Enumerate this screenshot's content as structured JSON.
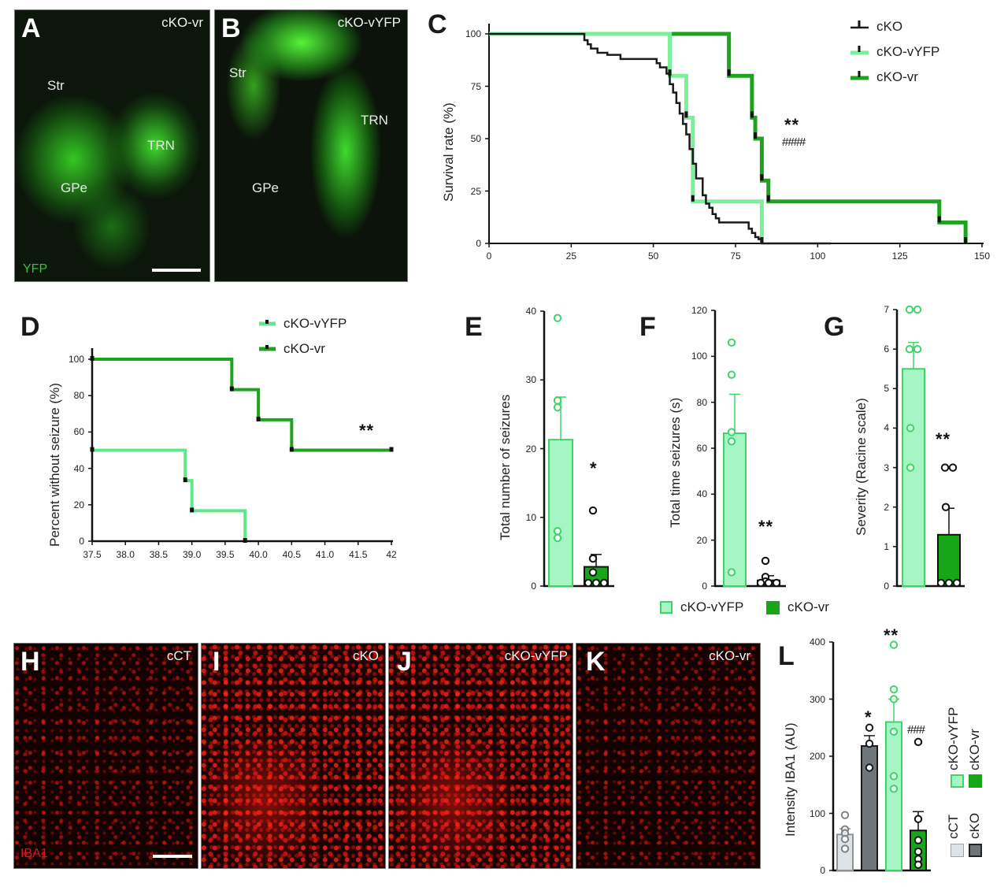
{
  "figure": {
    "panels": {
      "A": {
        "letter": "A",
        "genotype": "cKO-vr",
        "regions": [
          "Str",
          "TRN",
          "GPe"
        ],
        "stain": "YFP"
      },
      "B": {
        "letter": "B",
        "genotype": "cKO-vYFP",
        "regions": [
          "Str",
          "TRN",
          "GPe"
        ]
      },
      "C": {
        "letter": "C"
      },
      "D": {
        "letter": "D"
      },
      "E": {
        "letter": "E"
      },
      "F": {
        "letter": "F"
      },
      "G": {
        "letter": "G"
      },
      "H": {
        "letter": "H",
        "genotype": "cCT",
        "stain": "IBA1"
      },
      "I": {
        "letter": "I",
        "genotype": "cKO"
      },
      "J": {
        "letter": "J",
        "genotype": "cKO-vYFP"
      },
      "K": {
        "letter": "K",
        "genotype": "cKO-vr"
      },
      "L": {
        "letter": "L"
      }
    },
    "shared_legend_EFG": [
      {
        "label": "cKO-vYFP",
        "color": "#a6f5c4",
        "border": "#3fd46a"
      },
      {
        "label": "cKO-vr",
        "color": "#17a617",
        "border": "#17a617"
      }
    ],
    "colors": {
      "cKO": "#1a1a1a",
      "cCT": "#dde3e6",
      "cKO_bar": "#6f7679",
      "cKO_vYFP_line": "#7af09a",
      "cKO_vYFP_fill": "#a6f5c4",
      "cKO_vr": "#1fa21f"
    }
  },
  "chart_data": [
    {
      "panel": "C",
      "type": "line",
      "subtype": "kaplan-meier step",
      "title": "",
      "xlabel": "",
      "ylabel": "Survival rate (%)",
      "xlim": [
        0,
        150
      ],
      "ylim": [
        0,
        100
      ],
      "xticks": [
        "0",
        "25",
        "50",
        "75",
        "100",
        "125",
        "150"
      ],
      "yticks": [
        "0",
        "25",
        "50",
        "75",
        "100"
      ],
      "legend": [
        "cKO",
        "cKO-vYFP",
        "cKO-vr"
      ],
      "annotations": [
        "**",
        "####"
      ],
      "series": [
        {
          "name": "cKO",
          "color": "#1a1a1a",
          "x": [
            0,
            29,
            30,
            31,
            33,
            36,
            40,
            51,
            52,
            54,
            55,
            56,
            57,
            58,
            59,
            60,
            61,
            62,
            63,
            65,
            66,
            67,
            68,
            69,
            70,
            79,
            80,
            81,
            82,
            83,
            104
          ],
          "y": [
            100,
            97,
            95,
            93,
            91,
            90,
            88,
            86,
            84,
            81,
            76,
            72,
            67,
            62,
            57,
            52,
            45,
            38,
            31,
            23,
            19,
            17,
            14,
            12,
            10,
            7,
            5,
            3,
            2,
            0,
            0
          ]
        },
        {
          "name": "cKO-vYFP",
          "color": "#7af09a",
          "x": [
            0,
            55,
            60,
            62,
            83
          ],
          "y": [
            100,
            80,
            60,
            20,
            0
          ]
        },
        {
          "name": "cKO-vr",
          "color": "#1fa21f",
          "x": [
            0,
            73,
            80,
            81,
            83,
            85,
            137,
            145
          ],
          "y": [
            100,
            80,
            60,
            50,
            30,
            20,
            10,
            0
          ]
        }
      ]
    },
    {
      "panel": "D",
      "type": "line",
      "subtype": "kaplan-meier step",
      "title": "",
      "xlabel": "",
      "ylabel": "Percent without seizure (%)",
      "xlim": [
        37.5,
        42
      ],
      "ylim": [
        0,
        100
      ],
      "xticks": [
        "37.5",
        "38.0",
        "38.5",
        "39.0",
        "39.5",
        "40.0",
        "40.5",
        "41.0",
        "41.5",
        "42"
      ],
      "yticks": [
        "0",
        "20",
        "40",
        "60",
        "80",
        "100"
      ],
      "legend": [
        "cKO-vYFP",
        "cKO-vr"
      ],
      "annotations": [
        "**"
      ],
      "series": [
        {
          "name": "cKO-vYFP",
          "color": "#5ee88a",
          "x": [
            37.5,
            38.9,
            39.0,
            39.8
          ],
          "y": [
            50,
            33.3,
            16.7,
            0
          ]
        },
        {
          "name": "cKO-vr",
          "color": "#1fa21f",
          "x": [
            37.5,
            39.6,
            40.0,
            40.5,
            42
          ],
          "y": [
            100,
            83.3,
            66.7,
            50,
            50
          ]
        }
      ]
    },
    {
      "panel": "E",
      "type": "bar",
      "title": "",
      "ylabel": "Total number of seizures",
      "ylim": [
        0,
        40
      ],
      "yticks": [
        "0",
        "10",
        "20",
        "30",
        "40"
      ],
      "categories": [
        "cKO-vYFP",
        "cKO-vr"
      ],
      "values": [
        21.3,
        2.8
      ],
      "errors": [
        6.2,
        1.8
      ],
      "points": [
        [
          39,
          27,
          26,
          8,
          7
        ],
        [
          11,
          4,
          2,
          0,
          0,
          0
        ]
      ],
      "annotations": [
        "*"
      ]
    },
    {
      "panel": "F",
      "type": "bar",
      "title": "",
      "ylabel": "Total time seizures (s)",
      "ylim": [
        0,
        120
      ],
      "yticks": [
        "0",
        "20",
        "40",
        "60",
        "80",
        "100",
        "120"
      ],
      "categories": [
        "cKO-vYFP",
        "cKO-vr"
      ],
      "values": [
        66.5,
        2.5
      ],
      "errors": [
        17,
        2
      ],
      "points": [
        [
          106,
          92,
          67,
          63,
          6
        ],
        [
          11,
          4,
          2,
          0,
          0,
          0
        ]
      ],
      "annotations": [
        "**"
      ]
    },
    {
      "panel": "G",
      "type": "bar",
      "title": "",
      "ylabel": "Severity (Racine scale)",
      "ylim": [
        0,
        7
      ],
      "yticks": [
        "0",
        "1",
        "2",
        "3",
        "4",
        "5",
        "6",
        "7"
      ],
      "categories": [
        "cKO-vYFP",
        "cKO-vr"
      ],
      "values": [
        5.5,
        1.3
      ],
      "errors": [
        0.67,
        0.67
      ],
      "points": [
        [
          7,
          7,
          6,
          6,
          4,
          3
        ],
        [
          3,
          3,
          2,
          0,
          0,
          0
        ]
      ],
      "annotations": [
        "**"
      ]
    },
    {
      "panel": "L",
      "type": "bar",
      "title": "",
      "ylabel": "Intensity IBA1 (AU)",
      "ylim": [
        0,
        400
      ],
      "yticks": [
        "0",
        "100",
        "200",
        "300",
        "400"
      ],
      "categories": [
        "cCT",
        "cKO",
        "cKO-vYFP",
        "cKO-vr"
      ],
      "values": [
        63,
        218,
        260,
        70
      ],
      "errors": [
        10,
        18,
        40,
        33
      ],
      "points": [
        [
          97,
          72,
          65,
          55,
          38
        ],
        [
          250,
          222,
          180
        ],
        [
          395,
          317,
          300,
          243,
          165,
          143
        ],
        [
          225,
          90,
          53,
          33,
          20,
          10
        ]
      ],
      "legend": [
        "cKO-vYFP",
        "cKO-vr",
        "cCT",
        "cKO"
      ],
      "annotations": [
        "*",
        "**",
        "###"
      ]
    }
  ],
  "labels": {
    "C_legend": [
      "cKO",
      "cKO-vYFP",
      "cKO-vr"
    ],
    "C_sig": "**",
    "C_hash": "####",
    "D_legend": [
      "cKO-vYFP",
      "cKO-vr"
    ],
    "D_sig": "**",
    "E_sig": "*",
    "F_sig": "**",
    "G_sig": "**",
    "L_sig_cKO": "*",
    "L_sig_vYFP": "**",
    "L_hash_vr": "###",
    "L_legend": [
      "cKO-vYFP",
      "cKO-vr",
      "cCT",
      "cKO"
    ]
  }
}
